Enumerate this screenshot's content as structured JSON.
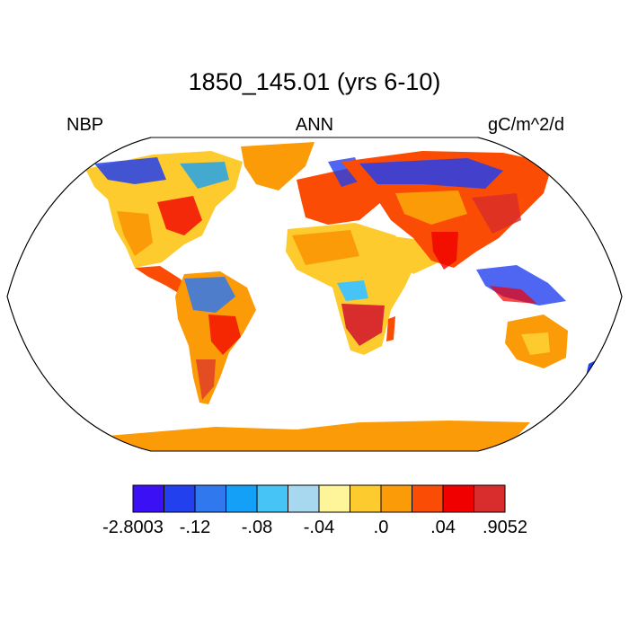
{
  "title": "1850_145.01 (yrs 6-10)",
  "left_string": "NBP",
  "center_string": "ANN",
  "right_string": "gC/m^2/d",
  "map": {
    "projection": "robinson",
    "ocean_color": "#ffffff",
    "land_outline_color": "#000000"
  },
  "colorbar": {
    "colors": [
      "#3b10f5",
      "#2240ee",
      "#2f78ee",
      "#14a0f6",
      "#46c4f5",
      "#a7d8f0",
      "#fef59a",
      "#fdcb2e",
      "#fb9b08",
      "#fa4c04",
      "#f10000",
      "#d92c2c"
    ],
    "labels": [
      "-2.8003",
      "-.12",
      "-.08",
      "-.04",
      ".0",
      ".04",
      ".9052"
    ]
  }
}
